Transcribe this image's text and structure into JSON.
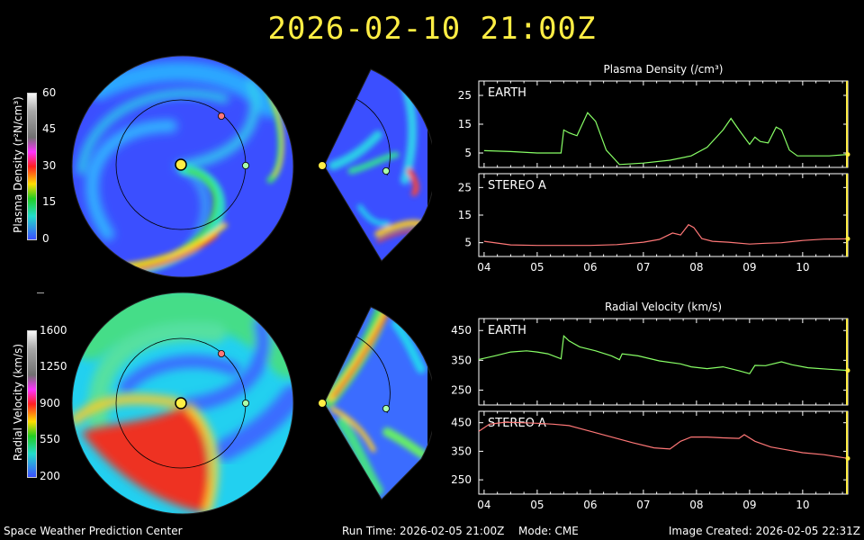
{
  "header": {
    "timestamp": "2026-02-10 21:00Z"
  },
  "footer": {
    "org": "Space Weather Prediction Center",
    "run_time": "Run Time: 2026-02-05 21:00Z",
    "mode": "Mode: CME",
    "image_created": "Image Created: 2026-02-05 22:31Z"
  },
  "colorbars": {
    "density": {
      "label": "Plasma Density (r²N/cm³)",
      "ticks": [
        "60",
        "45",
        "30",
        "15",
        "0"
      ]
    },
    "velocity": {
      "label": "Radial Velocity (km/s)",
      "ticks": [
        "1600",
        "1250",
        "900",
        "550",
        "200"
      ]
    }
  },
  "colors": {
    "earth_line": "#88ff66",
    "stereo_line": "#ff7777",
    "marker": "#ffee44",
    "earth_dot": "#aaffaa",
    "stereo_dot": "#ff7777"
  },
  "chart_data": [
    {
      "type": "line",
      "title": "Plasma Density (/cm³)",
      "panel": "EARTH",
      "x_ticks": [
        "04",
        "05",
        "06",
        "07",
        "08",
        "09",
        "10"
      ],
      "x": [
        4.0,
        4.5,
        5.0,
        5.45,
        5.5,
        5.6,
        5.75,
        5.95,
        6.1,
        6.3,
        6.55,
        7.0,
        7.5,
        7.9,
        8.2,
        8.5,
        8.65,
        8.8,
        9.0,
        9.1,
        9.2,
        9.35,
        9.5,
        9.6,
        9.75,
        9.9,
        10.2,
        10.5,
        10.85
      ],
      "y": [
        5.8,
        5.5,
        5.0,
        5.0,
        13,
        12,
        11,
        19,
        16,
        6,
        1,
        1.5,
        2.5,
        4,
        7,
        13,
        17,
        13,
        8,
        10.5,
        9,
        8.5,
        14,
        13,
        6,
        4,
        4,
        4,
        4.5
      ],
      "y_ticks": [
        25,
        15,
        5
      ],
      "ylim": [
        0,
        30
      ],
      "xlim": [
        3.9,
        10.85
      ]
    },
    {
      "type": "line",
      "panel": "STEREO A",
      "x_ticks": [
        "04",
        "05",
        "06",
        "07",
        "08",
        "09",
        "10"
      ],
      "x": [
        4.0,
        4.5,
        5.0,
        5.5,
        6.0,
        6.5,
        7.0,
        7.3,
        7.55,
        7.7,
        7.85,
        7.95,
        8.1,
        8.3,
        8.6,
        9.0,
        9.3,
        9.6,
        10.0,
        10.4,
        10.85
      ],
      "y": [
        5.5,
        4.2,
        4.0,
        4.0,
        4.0,
        4.3,
        5.2,
        6.2,
        8.5,
        7.8,
        11.5,
        10.5,
        6.5,
        5.5,
        5.2,
        4.5,
        4.8,
        5.0,
        5.8,
        6.3,
        6.4
      ],
      "y_ticks": [
        25,
        15,
        5
      ],
      "ylim": [
        0,
        30
      ],
      "xlim": [
        3.9,
        10.85
      ]
    },
    {
      "type": "line",
      "title": "Radial Velocity (km/s)",
      "panel": "EARTH",
      "x_ticks": [
        "04",
        "05",
        "06",
        "07",
        "08",
        "09",
        "10"
      ],
      "x": [
        3.9,
        4.2,
        4.5,
        4.8,
        5.0,
        5.2,
        5.45,
        5.5,
        5.6,
        5.8,
        6.1,
        6.4,
        6.55,
        6.6,
        6.9,
        7.3,
        7.7,
        7.9,
        8.2,
        8.5,
        8.8,
        9.0,
        9.1,
        9.3,
        9.6,
        9.8,
        10.1,
        10.5,
        10.85
      ],
      "y": [
        353,
        365,
        378,
        382,
        378,
        372,
        355,
        432,
        415,
        395,
        382,
        365,
        352,
        372,
        365,
        348,
        338,
        328,
        322,
        328,
        315,
        305,
        333,
        332,
        345,
        335,
        325,
        320,
        316
      ],
      "y_ticks": [
        450,
        350,
        250
      ],
      "ylim": [
        200,
        490
      ],
      "xlim": [
        3.9,
        10.85
      ]
    },
    {
      "type": "line",
      "panel": "STEREO A",
      "x_ticks": [
        "04",
        "05",
        "06",
        "07",
        "08",
        "09",
        "10"
      ],
      "x": [
        3.9,
        4.1,
        4.4,
        4.7,
        5.0,
        5.3,
        5.6,
        6.0,
        6.4,
        6.8,
        7.2,
        7.5,
        7.7,
        7.9,
        8.2,
        8.5,
        8.8,
        8.9,
        9.1,
        9.4,
        9.7,
        10.0,
        10.4,
        10.85
      ],
      "y": [
        420,
        445,
        452,
        450,
        448,
        445,
        440,
        420,
        400,
        380,
        362,
        358,
        385,
        400,
        400,
        397,
        395,
        408,
        385,
        365,
        355,
        345,
        338,
        325
      ],
      "y_ticks": [
        450,
        350,
        250
      ],
      "ylim": [
        200,
        490
      ],
      "xlim": [
        3.9,
        10.85
      ]
    }
  ]
}
